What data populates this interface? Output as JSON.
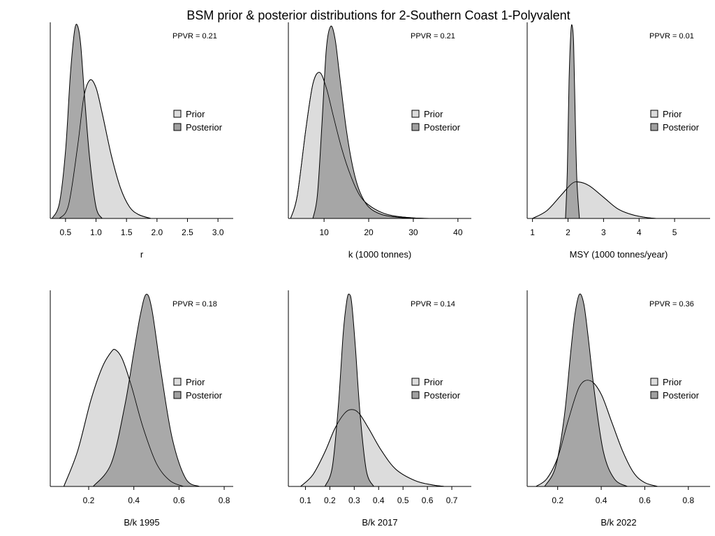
{
  "title": "BSM prior & posterior distributions for 2-Southern Coast 1-Polyvalent",
  "legend": {
    "prior": "Prior",
    "posterior": "Posterior"
  },
  "colors": {
    "prior": "#dcdcdc",
    "posterior": "#a0a0a0",
    "outline": "#000000"
  },
  "chart_data": [
    {
      "type": "area",
      "xlabel": "r",
      "ppvr": "PPVR = 0.21",
      "xlim": [
        0.25,
        3.25
      ],
      "ticks": [
        "0.5",
        "1.0",
        "1.5",
        "2.0",
        "2.5",
        "3.0"
      ],
      "prior": {
        "x": [
          0.4,
          0.55,
          0.7,
          0.8,
          0.9,
          1.0,
          1.1,
          1.25,
          1.4,
          1.55,
          1.7,
          1.9
        ],
        "y": [
          0.0,
          0.07,
          0.38,
          0.63,
          0.72,
          0.68,
          0.55,
          0.33,
          0.16,
          0.06,
          0.02,
          0.0
        ]
      },
      "posterior": {
        "x": [
          0.28,
          0.4,
          0.5,
          0.58,
          0.65,
          0.7,
          0.75,
          0.82,
          0.9,
          1.0,
          1.1
        ],
        "y": [
          0.0,
          0.08,
          0.35,
          0.75,
          0.98,
          1.0,
          0.9,
          0.6,
          0.3,
          0.06,
          0.0
        ]
      }
    },
    {
      "type": "area",
      "xlabel": "k (1000 tonnes)",
      "ppvr": "PPVR = 0.21",
      "xlim": [
        2,
        43
      ],
      "ticks": [
        "10",
        "20",
        "30",
        "40"
      ],
      "prior": {
        "x": [
          2.5,
          4,
          6,
          7.5,
          9,
          10.5,
          12,
          14,
          16,
          18,
          20,
          23,
          26,
          30,
          34
        ],
        "y": [
          0.0,
          0.12,
          0.48,
          0.7,
          0.76,
          0.68,
          0.54,
          0.36,
          0.22,
          0.12,
          0.07,
          0.03,
          0.012,
          0.003,
          0.0
        ]
      },
      "posterior": {
        "x": [
          7.5,
          8.5,
          9.5,
          10.5,
          11.5,
          12.5,
          13.5,
          15,
          16.5,
          18,
          20,
          23,
          27,
          31
        ],
        "y": [
          0.0,
          0.12,
          0.48,
          0.88,
          1.0,
          0.93,
          0.74,
          0.46,
          0.26,
          0.14,
          0.06,
          0.02,
          0.005,
          0.0
        ]
      }
    },
    {
      "type": "area",
      "xlabel": "MSY (1000 tonnes/year)",
      "ppvr": "PPVR = 0.01",
      "xlim": [
        0.85,
        6.0
      ],
      "ticks": [
        "1",
        "2",
        "3",
        "4",
        "5"
      ],
      "prior": {
        "x": [
          1.0,
          1.4,
          1.8,
          2.1,
          2.3,
          2.6,
          3.0,
          3.4,
          3.8,
          4.2,
          4.5
        ],
        "y": [
          0.0,
          0.04,
          0.12,
          0.18,
          0.19,
          0.17,
          0.11,
          0.05,
          0.02,
          0.005,
          0.0
        ]
      },
      "posterior": {
        "x": [
          1.93,
          1.98,
          2.03,
          2.08,
          2.12,
          2.16,
          2.2,
          2.25,
          2.32
        ],
        "y": [
          0.0,
          0.25,
          0.72,
          0.97,
          1.0,
          0.9,
          0.55,
          0.2,
          0.0
        ]
      }
    },
    {
      "type": "area",
      "xlabel": "B/k 1995",
      "ppvr": "PPVR = 0.18",
      "xlim": [
        0.03,
        0.84
      ],
      "ticks": [
        "0.2",
        "0.4",
        "0.6",
        "0.8"
      ],
      "prior": {
        "x": [
          0.09,
          0.15,
          0.21,
          0.26,
          0.3,
          0.32,
          0.35,
          0.39,
          0.44,
          0.5,
          0.56,
          0.62
        ],
        "y": [
          0.0,
          0.18,
          0.45,
          0.62,
          0.7,
          0.71,
          0.66,
          0.52,
          0.31,
          0.12,
          0.03,
          0.0
        ]
      },
      "posterior": {
        "x": [
          0.22,
          0.3,
          0.36,
          0.4,
          0.43,
          0.455,
          0.48,
          0.52,
          0.57,
          0.63,
          0.69
        ],
        "y": [
          0.0,
          0.12,
          0.42,
          0.7,
          0.9,
          1.0,
          0.92,
          0.6,
          0.25,
          0.04,
          0.0
        ]
      }
    },
    {
      "type": "area",
      "xlabel": "B/k 2017",
      "ppvr": "PPVR = 0.14",
      "xlim": [
        0.03,
        0.78
      ],
      "ticks": [
        "0.1",
        "0.2",
        "0.3",
        "0.4",
        "0.5",
        "0.6",
        "0.7"
      ],
      "prior": {
        "x": [
          0.08,
          0.13,
          0.18,
          0.22,
          0.26,
          0.29,
          0.32,
          0.36,
          0.41,
          0.47,
          0.55,
          0.62,
          0.67
        ],
        "y": [
          0.0,
          0.06,
          0.18,
          0.3,
          0.38,
          0.4,
          0.38,
          0.3,
          0.19,
          0.09,
          0.03,
          0.008,
          0.0
        ]
      },
      "posterior": {
        "x": [
          0.18,
          0.21,
          0.235,
          0.255,
          0.27,
          0.28,
          0.29,
          0.305,
          0.325,
          0.35,
          0.38
        ],
        "y": [
          0.0,
          0.1,
          0.42,
          0.8,
          0.97,
          1.0,
          0.95,
          0.72,
          0.36,
          0.08,
          0.0
        ]
      }
    },
    {
      "type": "area",
      "xlabel": "B/k 2022",
      "ppvr": "PPVR = 0.36",
      "xlim": [
        0.06,
        0.9
      ],
      "ticks": [
        "0.2",
        "0.4",
        "0.6",
        "0.8"
      ],
      "prior": {
        "x": [
          0.1,
          0.15,
          0.2,
          0.25,
          0.3,
          0.35,
          0.4,
          0.45,
          0.5,
          0.55,
          0.6,
          0.66
        ],
        "y": [
          0.0,
          0.04,
          0.15,
          0.35,
          0.52,
          0.55,
          0.48,
          0.33,
          0.18,
          0.07,
          0.02,
          0.0
        ]
      },
      "posterior": {
        "x": [
          0.14,
          0.19,
          0.23,
          0.26,
          0.28,
          0.3,
          0.32,
          0.34,
          0.37,
          0.41,
          0.46,
          0.52
        ],
        "y": [
          0.0,
          0.1,
          0.36,
          0.7,
          0.9,
          1.0,
          0.95,
          0.78,
          0.48,
          0.18,
          0.04,
          0.0
        ]
      }
    }
  ]
}
